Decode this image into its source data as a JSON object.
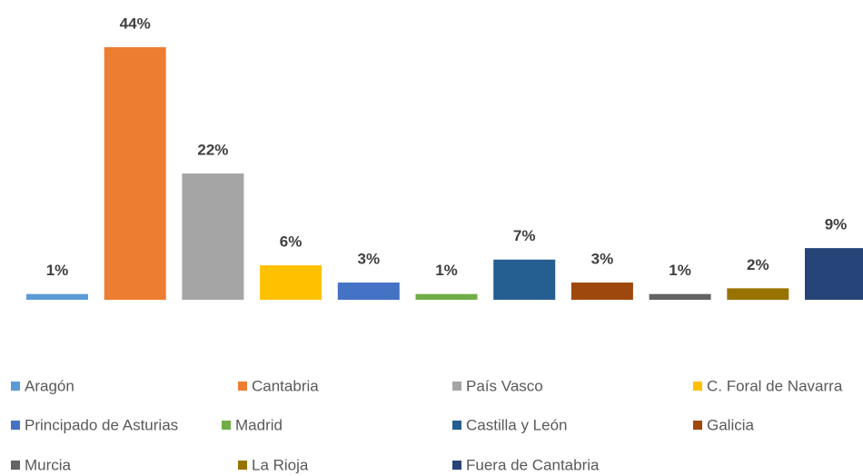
{
  "chart_data": {
    "type": "bar",
    "categories": [
      "Aragón",
      "Cantabria",
      "País Vasco",
      "C. Foral de Navarra",
      "Principado de Asturias",
      "Madrid",
      "Castilla y León",
      "Galicia",
      "Murcia",
      "La Rioja",
      "Fuera de Cantabria"
    ],
    "values": [
      1,
      44,
      22,
      6,
      3,
      1,
      7,
      3,
      1,
      2,
      9
    ],
    "value_labels": [
      "1%",
      "44%",
      "22%",
      "6%",
      "3%",
      "1%",
      "7%",
      "3%",
      "1%",
      "2%",
      "9%"
    ],
    "colors": [
      "#5b9bd5",
      "#ed7d31",
      "#a5a5a5",
      "#ffc000",
      "#4472c4",
      "#70ad47",
      "#255e91",
      "#9e480e",
      "#636363",
      "#997300",
      "#264478"
    ],
    "legend": "bottom"
  }
}
